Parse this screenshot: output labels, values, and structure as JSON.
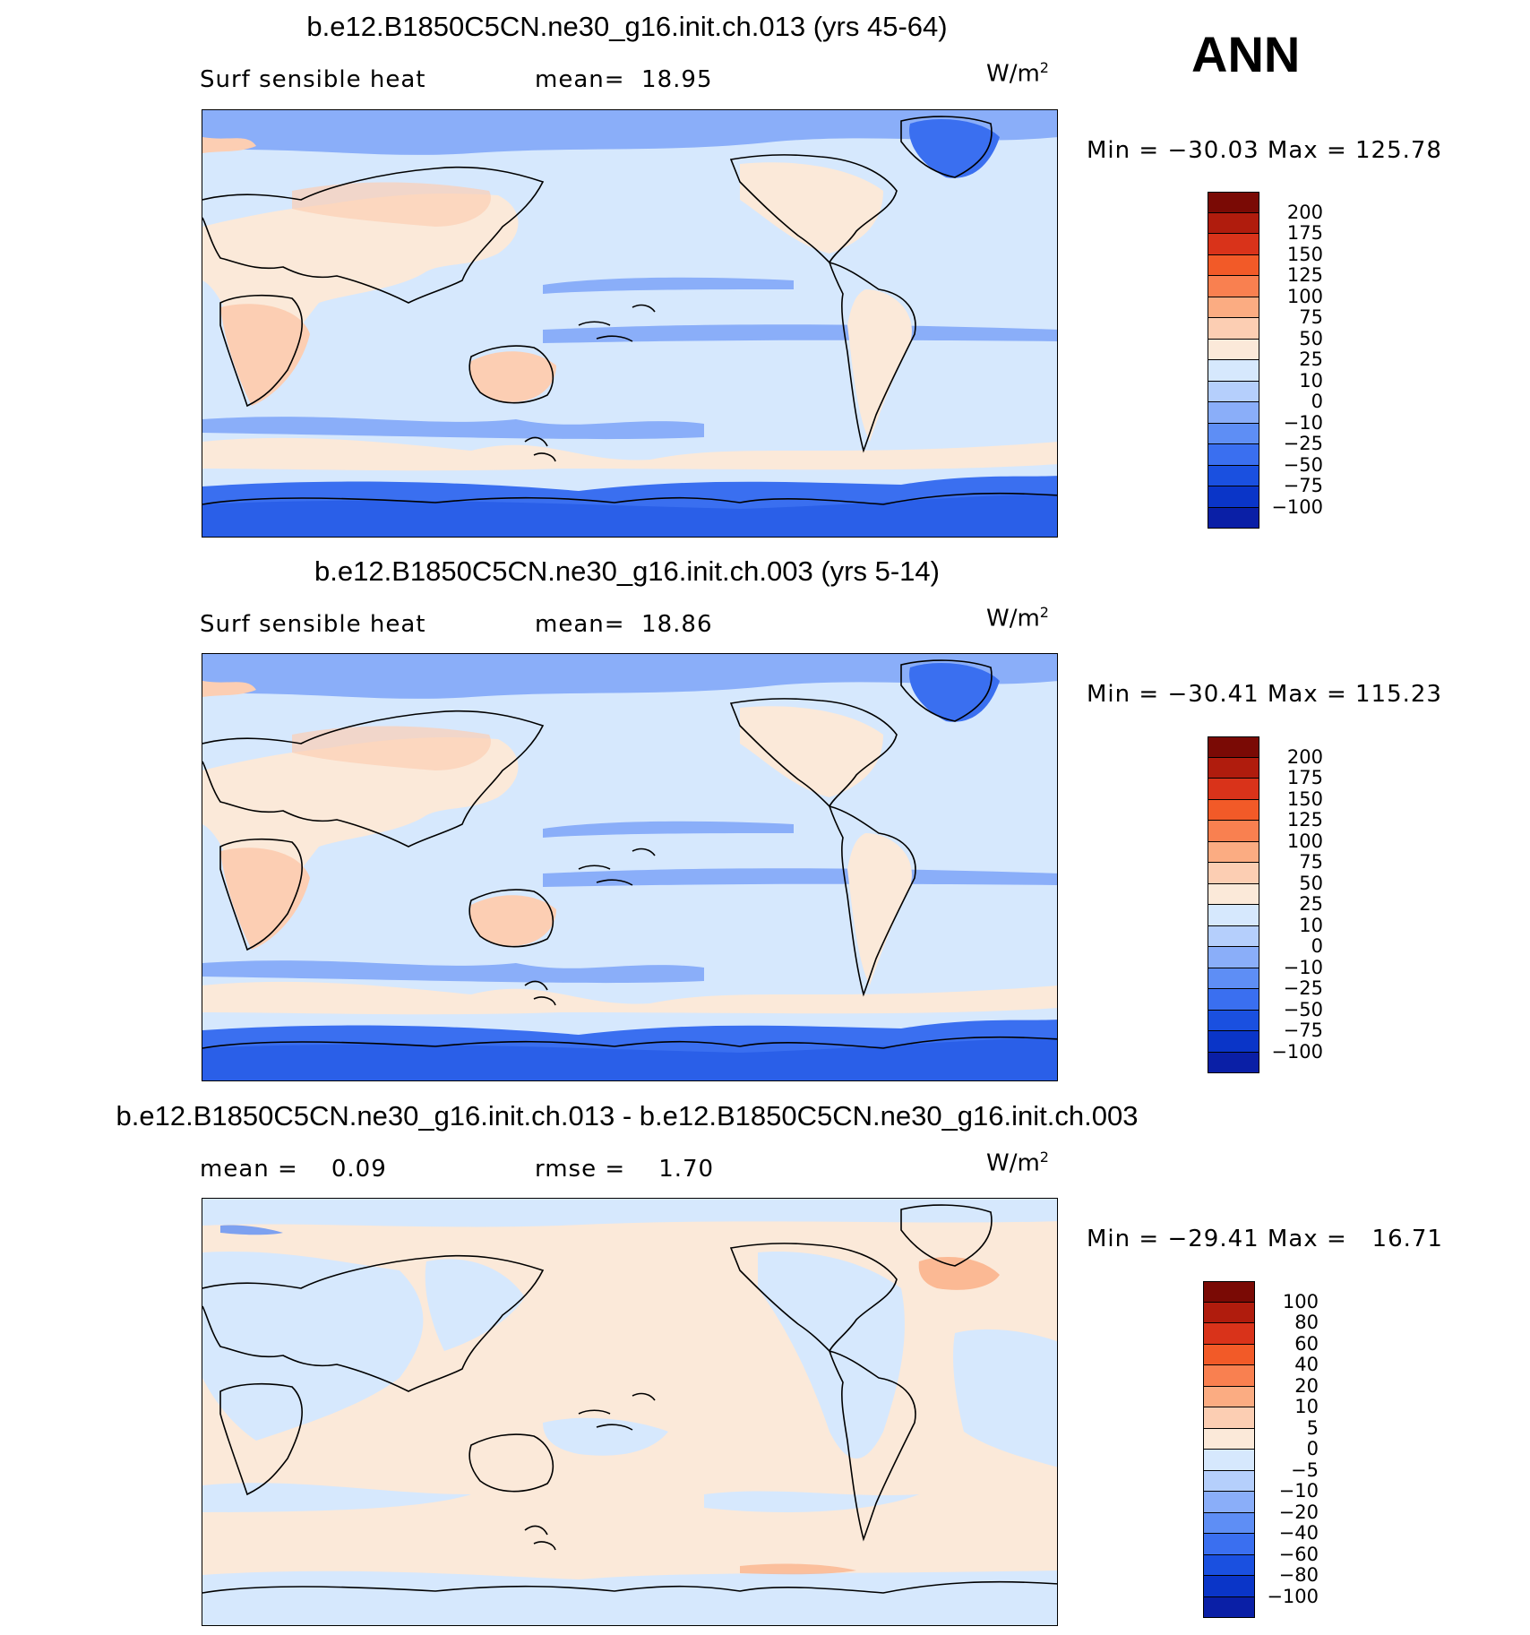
{
  "ann_label": "ANN",
  "colors": {
    "abs_scale": [
      "#000080",
      "#0a1fa6",
      "#0a35c8",
      "#1a50e0",
      "#3a6ff0",
      "#5e8ef5",
      "#8aaef9",
      "#b5cffc",
      "#d6e8fd",
      "#fbe9d9",
      "#fcceb3",
      "#fbac82",
      "#f98050",
      "#f25a28",
      "#d9331a",
      "#b01c0d",
      "#7a0a05"
    ],
    "diff_scale": [
      "#000080",
      "#0a1fa6",
      "#0a35c8",
      "#1a50e0",
      "#3a6ff0",
      "#5e8ef5",
      "#8aaef9",
      "#b5cffc",
      "#d6e8fd",
      "#fbe9d9",
      "#fcceb3",
      "#fbac82",
      "#f98050",
      "#f25a28",
      "#d9331a",
      "#b01c0d",
      "#7a0a05"
    ]
  },
  "panels": [
    {
      "title": "b.e12.B1850C5CN.ne30_g16.init.ch.013 (yrs 45-64)",
      "left_label": "Surf sensible heat",
      "center_label": "mean=  18.95",
      "units_base": "W/m",
      "units_exp": "2",
      "minmax": "Min = −30.03 Max = 125.78",
      "colorbar_labels": [
        "200",
        "175",
        "150",
        "125",
        "100",
        "75",
        "50",
        "25",
        "10",
        "0",
        "−10",
        "−25",
        "−50",
        "−75",
        "−100"
      ]
    },
    {
      "title": "b.e12.B1850C5CN.ne30_g16.init.ch.003 (yrs 5-14)",
      "left_label": "Surf sensible heat",
      "center_label": "mean=  18.86",
      "units_base": "W/m",
      "units_exp": "2",
      "minmax": "Min = −30.41 Max = 115.23",
      "colorbar_labels": [
        "200",
        "175",
        "150",
        "125",
        "100",
        "75",
        "50",
        "25",
        "10",
        "0",
        "−10",
        "−25",
        "−50",
        "−75",
        "−100"
      ]
    },
    {
      "title": "b.e12.B1850C5CN.ne30_g16.init.ch.013 - b.e12.B1850C5CN.ne30_g16.init.ch.003",
      "left_label": "mean =    0.09",
      "center_label": "rmse =    1.70",
      "units_base": "W/m",
      "units_exp": "2",
      "minmax": "Min = −29.41 Max =   16.71",
      "colorbar_labels": [
        "100",
        "80",
        "60",
        "40",
        "20",
        "10",
        "5",
        "0",
        "−5",
        "−10",
        "−20",
        "−40",
        "−60",
        "−80",
        "−100"
      ]
    }
  ],
  "chart_data": [
    {
      "type": "heatmap",
      "title": "b.e12.B1850C5CN.ne30_g16.init.ch.013 (yrs 45-64)",
      "variable": "Surf sensible heat",
      "units": "W/m2",
      "mean": 18.95,
      "min": -30.03,
      "max": 125.78,
      "contour_levels": [
        -100,
        -75,
        -50,
        -25,
        -10,
        0,
        10,
        25,
        50,
        75,
        100,
        125,
        150,
        175,
        200
      ]
    },
    {
      "type": "heatmap",
      "title": "b.e12.B1850C5CN.ne30_g16.init.ch.003 (yrs 5-14)",
      "variable": "Surf sensible heat",
      "units": "W/m2",
      "mean": 18.86,
      "min": -30.41,
      "max": 115.23,
      "contour_levels": [
        -100,
        -75,
        -50,
        -25,
        -10,
        0,
        10,
        25,
        50,
        75,
        100,
        125,
        150,
        175,
        200
      ]
    },
    {
      "type": "heatmap",
      "title": "b.e12.B1850C5CN.ne30_g16.init.ch.013 - b.e12.B1850C5CN.ne30_g16.init.ch.003",
      "units": "W/m2",
      "mean": 0.09,
      "rmse": 1.7,
      "min": -29.41,
      "max": 16.71,
      "contour_levels": [
        -100,
        -80,
        -60,
        -40,
        -20,
        -10,
        -5,
        0,
        5,
        10,
        20,
        40,
        60,
        80,
        100
      ]
    }
  ]
}
